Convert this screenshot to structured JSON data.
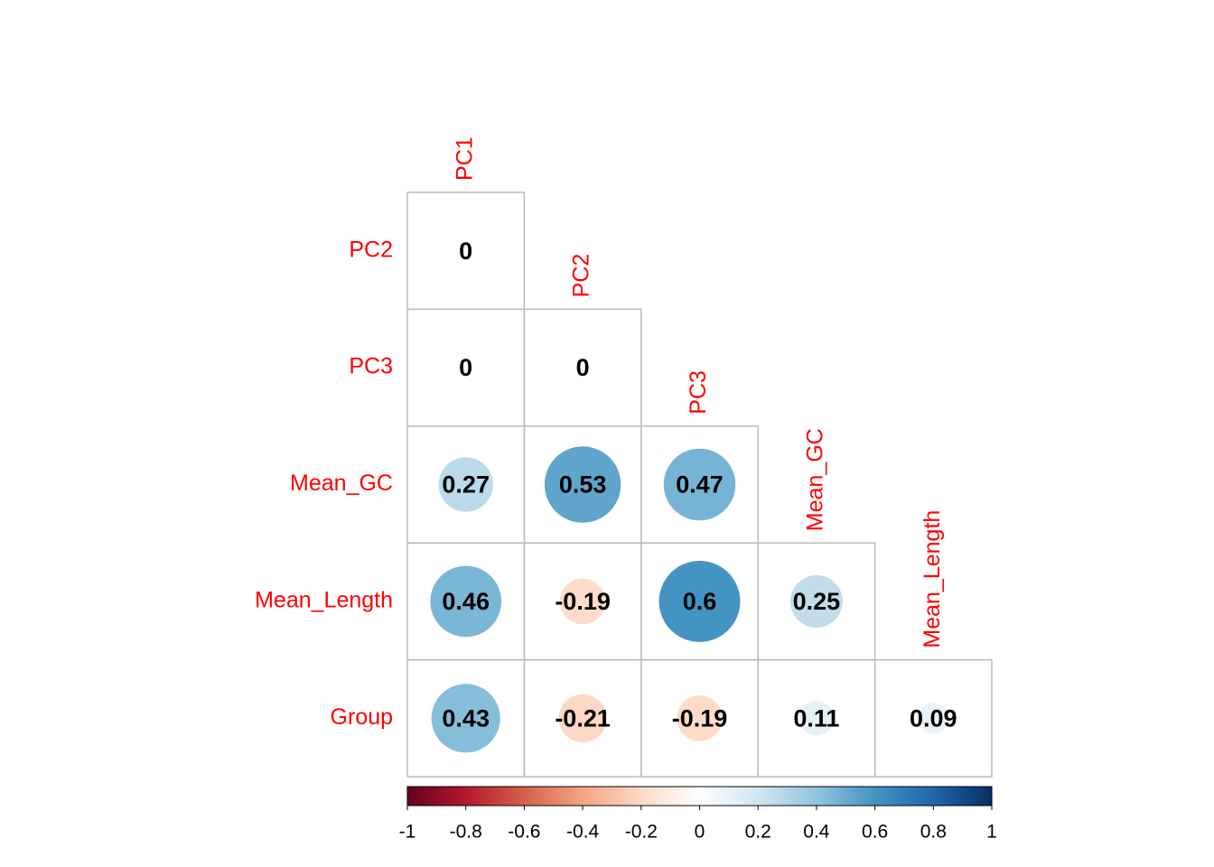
{
  "chart_data": {
    "type": "corrplot",
    "columns": [
      "PC1",
      "PC2",
      "PC3",
      "Mean_GC",
      "Mean_Length"
    ],
    "rows": [
      "PC2",
      "PC3",
      "Mean_GC",
      "Mean_Length",
      "Group"
    ],
    "values": [
      [
        0,
        null,
        null,
        null,
        null
      ],
      [
        0,
        0,
        null,
        null,
        null
      ],
      [
        0.27,
        0.53,
        0.47,
        null,
        null
      ],
      [
        0.46,
        -0.19,
        0.6,
        0.25,
        null
      ],
      [
        0.43,
        -0.21,
        -0.19,
        0.11,
        0.09
      ]
    ],
    "label_color": "#ff0000",
    "palette": [
      "#67001F",
      "#B2182B",
      "#D6604D",
      "#F4A582",
      "#FDDBC7",
      "#FFFFFF",
      "#D1E5F0",
      "#92C5DE",
      "#4393C3",
      "#2166AC",
      "#053061"
    ],
    "clim": [
      -1,
      1
    ],
    "cticks": [
      -1,
      -0.8,
      -0.6,
      -0.4,
      -0.2,
      0,
      0.2,
      0.4,
      0.6,
      0.8,
      1
    ]
  }
}
